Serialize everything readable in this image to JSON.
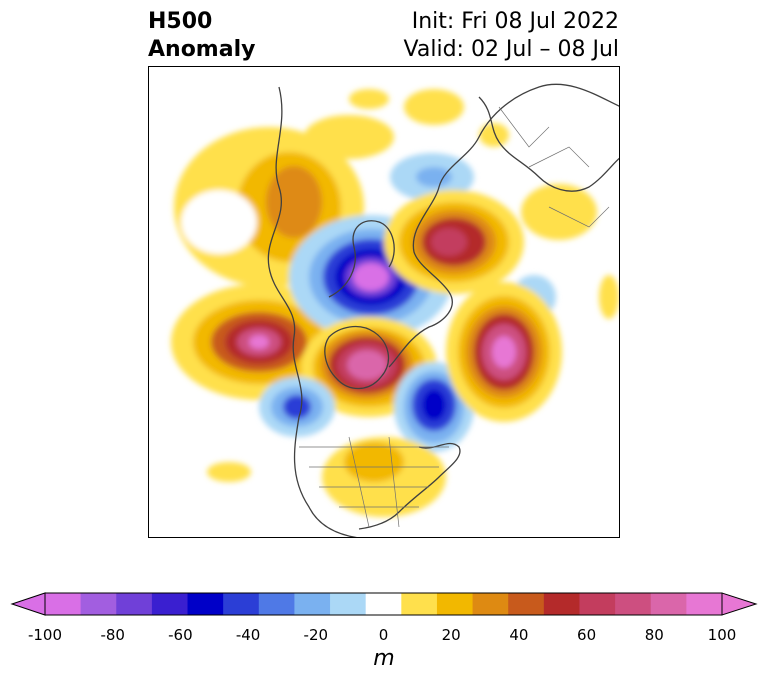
{
  "title": {
    "line1": "H500",
    "line2": "Anomaly"
  },
  "subtitle": {
    "init": "Init: Fri 08 Jul 2022",
    "valid": "Valid: 02 Jul – 08 Jul"
  },
  "colorbar": {
    "unit": "m",
    "ticks": [
      "-100",
      "-80",
      "-60",
      "-40",
      "-20",
      "0",
      "20",
      "40",
      "60",
      "80",
      "100"
    ],
    "levels": [
      -100,
      -90,
      -80,
      -70,
      -60,
      -50,
      -40,
      -30,
      -20,
      -10,
      10,
      20,
      30,
      40,
      50,
      60,
      70,
      80,
      90,
      100
    ],
    "colors": [
      "#d96fe6",
      "#a25ee0",
      "#7040d8",
      "#3a1fd0",
      "#0000c8",
      "#2b3ed6",
      "#4f79e6",
      "#7ab1f0",
      "#abd8f6",
      "#ffffff",
      "#ffe04c",
      "#f2b800",
      "#de8a12",
      "#c85a1c",
      "#b42a2a",
      "#c33d5e",
      "#cd4f80",
      "#da66aa",
      "#e777d4"
    ]
  }
}
